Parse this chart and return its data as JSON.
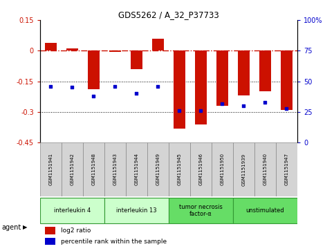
{
  "title": "GDS5262 / A_32_P37733",
  "samples": [
    "GSM1151941",
    "GSM1151942",
    "GSM1151948",
    "GSM1151943",
    "GSM1151944",
    "GSM1151949",
    "GSM1151945",
    "GSM1151946",
    "GSM1151950",
    "GSM1151939",
    "GSM1151940",
    "GSM1151947"
  ],
  "log2_ratio": [
    0.04,
    0.01,
    -0.19,
    -0.005,
    -0.09,
    0.06,
    -0.38,
    -0.36,
    -0.27,
    -0.22,
    -0.2,
    -0.29
  ],
  "percentile_rank": [
    46,
    45,
    38,
    46,
    40,
    46,
    26,
    26,
    32,
    30,
    33,
    28
  ],
  "agents": [
    {
      "label": "interleukin 4",
      "start": 0,
      "end": 3,
      "color": "#ccffcc"
    },
    {
      "label": "interleukin 13",
      "start": 3,
      "end": 6,
      "color": "#ccffcc"
    },
    {
      "label": "tumor necrosis\nfactor-α",
      "start": 6,
      "end": 9,
      "color": "#66dd66"
    },
    {
      "label": "unstimulated",
      "start": 9,
      "end": 12,
      "color": "#66dd66"
    }
  ],
  "ylim": [
    -0.45,
    0.15
  ],
  "yticks_left": [
    0.15,
    0.0,
    -0.15,
    -0.3,
    -0.45
  ],
  "yticks_right": [
    100,
    75,
    50,
    25,
    0
  ],
  "bar_color": "#cc1100",
  "dot_color": "#0000cc",
  "hline_color": "#cc1100",
  "dotline_color": "#000000",
  "bar_width": 0.55,
  "legend_bar_label": "log2 ratio",
  "legend_dot_label": "percentile rank within the sample",
  "agent_label": "agent"
}
